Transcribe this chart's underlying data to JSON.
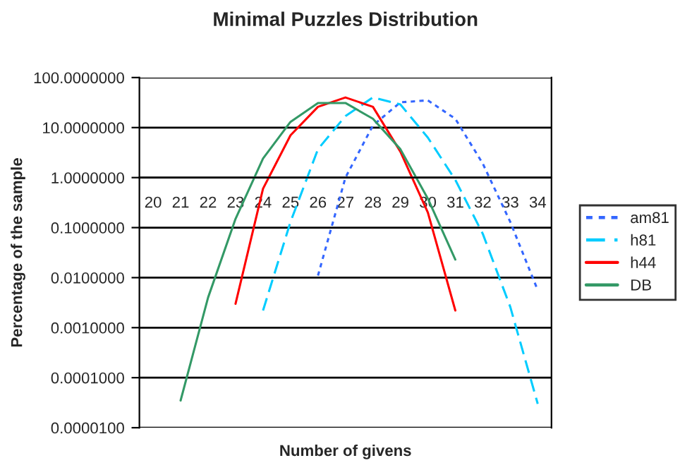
{
  "chart_data": {
    "type": "line",
    "title": "Minimal Puzzles Distribution",
    "xlabel": "Number of givens",
    "ylabel": "Percentage of the sample",
    "categories": [
      "20",
      "21",
      "22",
      "23",
      "24",
      "25",
      "26",
      "27",
      "28",
      "29",
      "30",
      "31",
      "32",
      "33",
      "34"
    ],
    "log": "y",
    "ylim": [
      1e-05,
      100
    ],
    "yticks": [
      {
        "value": 1e-05,
        "label": "0.0000100"
      },
      {
        "value": 0.0001,
        "label": "0.0001000"
      },
      {
        "value": 0.001,
        "label": "0.0010000"
      },
      {
        "value": 0.01,
        "label": "0.0100000"
      },
      {
        "value": 0.1,
        "label": "0.1000000"
      },
      {
        "value": 1,
        "label": "1.0000000"
      },
      {
        "value": 10,
        "label": "10.0000000"
      },
      {
        "value": 100,
        "label": "100.0000000"
      }
    ],
    "grid": "y",
    "legend": "right",
    "marker": "none",
    "series": [
      {
        "name": "am81",
        "color": "#3366ff",
        "line_style": "dotted",
        "values": [
          null,
          null,
          null,
          null,
          null,
          null,
          0.011,
          1.0,
          11,
          32,
          35,
          15,
          1.9,
          0.13,
          0.0056
        ]
      },
      {
        "name": "h81",
        "color": "#00ccff",
        "line_style": "dashed",
        "values": [
          null,
          null,
          null,
          null,
          0.0022,
          0.13,
          3.7,
          17,
          40,
          29,
          6.3,
          0.9,
          0.075,
          0.0026,
          3e-05
        ]
      },
      {
        "name": "h44",
        "color": "#ff0000",
        "line_style": "solid",
        "values": [
          null,
          null,
          null,
          0.003,
          0.6,
          7,
          26,
          40,
          26,
          3.3,
          0.2,
          0.0022,
          null,
          null,
          null
        ]
      },
      {
        "name": "DB",
        "color": "#339966",
        "line_style": "solid",
        "values": [
          null,
          3.5e-05,
          0.004,
          0.15,
          2.4,
          13,
          31,
          31,
          15,
          3.7,
          0.38,
          0.023,
          null,
          null,
          null
        ]
      }
    ]
  }
}
